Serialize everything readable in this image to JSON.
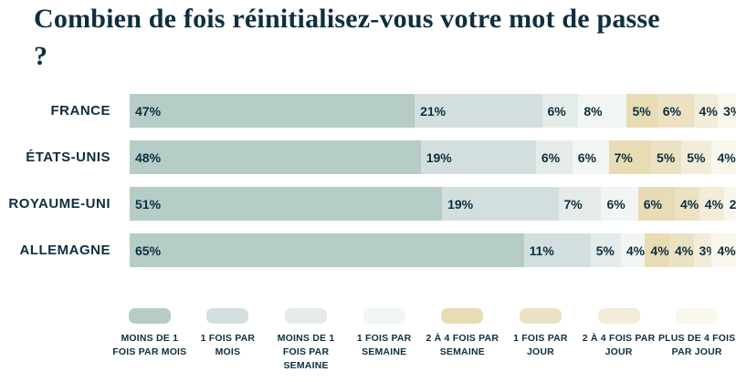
{
  "title": "Combien de fois réinitialisez-vous votre mot de passe ?",
  "colors": {
    "text": "#0d2f3f",
    "background": "#ffffff"
  },
  "chart_data": {
    "type": "bar",
    "stacked": true,
    "orientation": "horizontal",
    "value_suffix": "%",
    "xlim": [
      0,
      100
    ],
    "legend_position": "bottom",
    "categories": [
      "FRANCE",
      "ÉTATS-UNIS",
      "ROYAUME-UNI",
      "ALLEMAGNE"
    ],
    "series": [
      {
        "name": "MOINS DE 1 FOIS PAR MOIS",
        "color": "#b5ccc7",
        "values": [
          47,
          48,
          51,
          65
        ]
      },
      {
        "name": "1 FOIS PAR MOIS",
        "color": "#d3dfde",
        "values": [
          21,
          19,
          19,
          11
        ]
      },
      {
        "name": "MOINS DE 1 FOIS PAR SEMAINE",
        "color": "#e4ebe9",
        "values": [
          6,
          6,
          7,
          5
        ]
      },
      {
        "name": "1 FOIS PAR SEMAINE",
        "color": "#f1f6f4",
        "values": [
          8,
          6,
          6,
          4
        ]
      },
      {
        "name": "2 À 4 FOIS PAR SEMAINE",
        "color": "#e7dcb4",
        "values": [
          5,
          7,
          6,
          4
        ]
      },
      {
        "name": "1 FOIS PAR JOUR",
        "color": "#ece2c3",
        "values": [
          6,
          5,
          4,
          4
        ]
      },
      {
        "name": "2 À 4 FOIS PAR JOUR",
        "color": "#f2ecd8",
        "values": [
          4,
          5,
          4,
          3
        ]
      },
      {
        "name": "PLUS DE 4 FOIS PAR JOUR",
        "color": "#f9f7ec",
        "values": [
          3,
          4,
          2,
          4
        ]
      }
    ]
  }
}
